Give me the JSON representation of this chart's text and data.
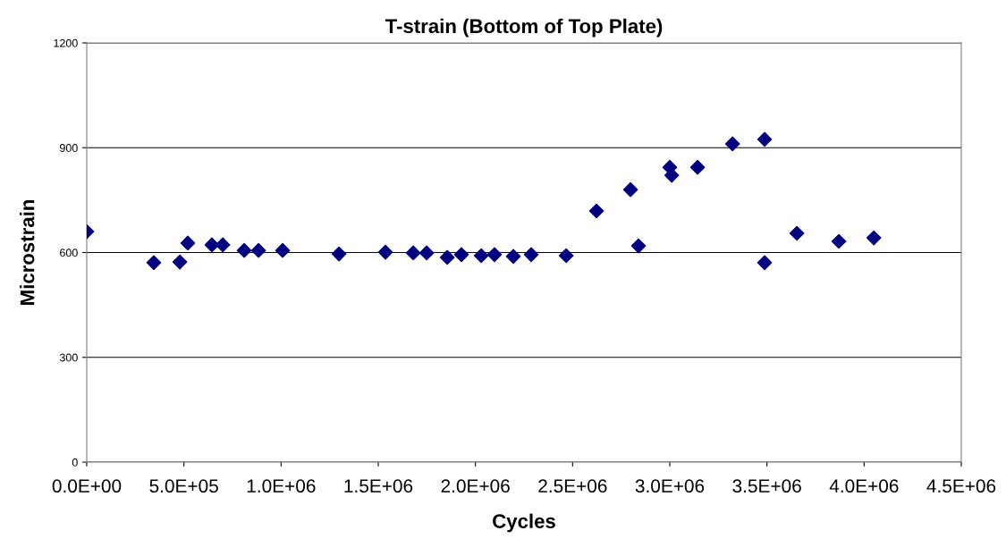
{
  "chart_data": {
    "type": "scatter",
    "title": "T-strain (Bottom of Top Plate)",
    "xlabel": "Cycles",
    "ylabel": "Microstrain",
    "x": [
      0,
      345000,
      479000,
      520000,
      644000,
      700000,
      810000,
      884000,
      1008000,
      1298000,
      1537000,
      1680000,
      1749000,
      1855000,
      1928000,
      2030000,
      2098000,
      2195000,
      2287000,
      2467000,
      2623000,
      2798000,
      2839000,
      3000000,
      3010000,
      3143000,
      3323000,
      3488000,
      3488000,
      3654000,
      3870000,
      4050000
    ],
    "series": [
      {
        "color": "#000080",
        "values": [
          660,
          571,
          573,
          627,
          622,
          622,
          606,
          606,
          606,
          596,
          601,
          599,
          599,
          586,
          594,
          591,
          594,
          589,
          594,
          591,
          719,
          780,
          619,
          844,
          821,
          844,
          911,
          924,
          571,
          655,
          632,
          642
        ]
      }
    ],
    "xlim": [
      0,
      4500000
    ],
    "xticks": [
      {
        "value": 0,
        "label": "0.0E+00"
      },
      {
        "value": 500000,
        "label": "5.0E+05"
      },
      {
        "value": 1000000,
        "label": "1.0E+06"
      },
      {
        "value": 1500000,
        "label": "1.5E+06"
      },
      {
        "value": 2000000,
        "label": "2.0E+06"
      },
      {
        "value": 2500000,
        "label": "2.5E+06"
      },
      {
        "value": 3000000,
        "label": "3.0E+06"
      },
      {
        "value": 3500000,
        "label": "3.5E+06"
      },
      {
        "value": 4000000,
        "label": "4.0E+06"
      },
      {
        "value": 4500000,
        "label": "4.5E+06"
      }
    ],
    "ylim": [
      0,
      1200
    ],
    "yticks": [
      0,
      300,
      600,
      900,
      1200
    ],
    "grid": "y",
    "marker": "diamond",
    "legend": false
  }
}
